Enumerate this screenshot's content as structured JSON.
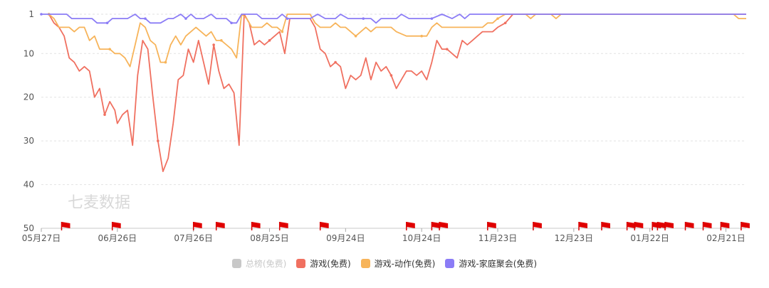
{
  "chart_data": {
    "type": "line",
    "y_reversed": true,
    "ylim": [
      1,
      50
    ],
    "yticks": [
      1,
      10,
      20,
      30,
      40,
      50
    ],
    "xlim": [
      "2023-05-27",
      "2024-02-29"
    ],
    "xticks": [
      {
        "label": "05月27日",
        "date": "2023-05-27"
      },
      {
        "label": "06月26日",
        "date": "2023-06-26"
      },
      {
        "label": "07月26日",
        "date": "2023-07-26"
      },
      {
        "label": "08月25日",
        "date": "2023-08-25"
      },
      {
        "label": "09月24日",
        "date": "2023-09-24"
      },
      {
        "label": "10月24日",
        "date": "2023-10-24"
      },
      {
        "label": "11月23日",
        "date": "2023-11-23"
      },
      {
        "label": "12月23日",
        "date": "2023-12-23"
      },
      {
        "label": "01月22日",
        "date": "2024-01-22"
      },
      {
        "label": "02月21日",
        "date": "2024-02-21"
      }
    ],
    "grid": "horizontal-dashed",
    "legend_position": "bottom-center",
    "watermark": "七麦数据",
    "series": [
      {
        "name": "总榜(免费)",
        "color": "#c8c8c8",
        "visible": false,
        "points": []
      },
      {
        "name": "游戏(免费)",
        "color": "#f07060",
        "visible": true,
        "points": [
          [
            "2023-05-30",
            1
          ],
          [
            "2023-06-01",
            3
          ],
          [
            "2023-06-03",
            4
          ],
          [
            "2023-06-05",
            6
          ],
          [
            "2023-06-07",
            11
          ],
          [
            "2023-06-09",
            12
          ],
          [
            "2023-06-11",
            14
          ],
          [
            "2023-06-13",
            13
          ],
          [
            "2023-06-15",
            14
          ],
          [
            "2023-06-17",
            20
          ],
          [
            "2023-06-19",
            18
          ],
          [
            "2023-06-21",
            24
          ],
          [
            "2023-06-23",
            21
          ],
          [
            "2023-06-25",
            23
          ],
          [
            "2023-06-26",
            26
          ],
          [
            "2023-06-28",
            24
          ],
          [
            "2023-06-30",
            23
          ],
          [
            "2023-07-02",
            31
          ],
          [
            "2023-07-04",
            15
          ],
          [
            "2023-07-06",
            7
          ],
          [
            "2023-07-08",
            9
          ],
          [
            "2023-07-10",
            20
          ],
          [
            "2023-07-12",
            30
          ],
          [
            "2023-07-14",
            37
          ],
          [
            "2023-07-16",
            34
          ],
          [
            "2023-07-18",
            26
          ],
          [
            "2023-07-20",
            16
          ],
          [
            "2023-07-22",
            15
          ],
          [
            "2023-07-24",
            9
          ],
          [
            "2023-07-26",
            12
          ],
          [
            "2023-07-28",
            7
          ],
          [
            "2023-07-30",
            12
          ],
          [
            "2023-08-01",
            17
          ],
          [
            "2023-08-03",
            8
          ],
          [
            "2023-08-05",
            14
          ],
          [
            "2023-08-07",
            18
          ],
          [
            "2023-08-09",
            17
          ],
          [
            "2023-08-11",
            19
          ],
          [
            "2023-08-13",
            31
          ],
          [
            "2023-08-15",
            1
          ],
          [
            "2023-08-17",
            3
          ],
          [
            "2023-08-19",
            8
          ],
          [
            "2023-08-21",
            7
          ],
          [
            "2023-08-23",
            8
          ],
          [
            "2023-08-25",
            7
          ],
          [
            "2023-08-27",
            6
          ],
          [
            "2023-08-29",
            5
          ],
          [
            "2023-08-31",
            10
          ],
          [
            "2023-09-02",
            2
          ],
          [
            "2023-09-06",
            2
          ],
          [
            "2023-09-10",
            2
          ],
          [
            "2023-09-12",
            4
          ],
          [
            "2023-09-14",
            9
          ],
          [
            "2023-09-16",
            10
          ],
          [
            "2023-09-18",
            13
          ],
          [
            "2023-09-20",
            12
          ],
          [
            "2023-09-22",
            13
          ],
          [
            "2023-09-24",
            18
          ],
          [
            "2023-09-26",
            15
          ],
          [
            "2023-09-28",
            16
          ],
          [
            "2023-09-30",
            15
          ],
          [
            "2023-10-02",
            11
          ],
          [
            "2023-10-04",
            16
          ],
          [
            "2023-10-06",
            12
          ],
          [
            "2023-10-08",
            14
          ],
          [
            "2023-10-10",
            13
          ],
          [
            "2023-10-12",
            15
          ],
          [
            "2023-10-14",
            18
          ],
          [
            "2023-10-16",
            16
          ],
          [
            "2023-10-18",
            14
          ],
          [
            "2023-10-20",
            14
          ],
          [
            "2023-10-22",
            15
          ],
          [
            "2023-10-24",
            14
          ],
          [
            "2023-10-26",
            16
          ],
          [
            "2023-10-28",
            12
          ],
          [
            "2023-10-30",
            7
          ],
          [
            "2023-11-01",
            9
          ],
          [
            "2023-11-03",
            9
          ],
          [
            "2023-11-05",
            10
          ],
          [
            "2023-11-07",
            11
          ],
          [
            "2023-11-09",
            7
          ],
          [
            "2023-11-11",
            8
          ],
          [
            "2023-11-13",
            7
          ],
          [
            "2023-11-15",
            6
          ],
          [
            "2023-11-17",
            5
          ],
          [
            "2023-11-19",
            5
          ],
          [
            "2023-11-21",
            5
          ],
          [
            "2023-11-23",
            4
          ],
          [
            "2023-11-26",
            3
          ],
          [
            "2023-11-29",
            1
          ],
          [
            "2023-12-05",
            1
          ],
          [
            "2023-12-20",
            1
          ],
          [
            "2024-01-10",
            1
          ],
          [
            "2024-02-01",
            1
          ],
          [
            "2024-02-29",
            1
          ]
        ]
      },
      {
        "name": "游戏-动作(免费)",
        "color": "#f7b45a",
        "visible": true,
        "points": [
          [
            "2023-05-30",
            1
          ],
          [
            "2023-06-01",
            2
          ],
          [
            "2023-06-03",
            4
          ],
          [
            "2023-06-07",
            4
          ],
          [
            "2023-06-09",
            5
          ],
          [
            "2023-06-11",
            4
          ],
          [
            "2023-06-13",
            4
          ],
          [
            "2023-06-15",
            7
          ],
          [
            "2023-06-17",
            6
          ],
          [
            "2023-06-19",
            9
          ],
          [
            "2023-06-21",
            9
          ],
          [
            "2023-06-23",
            9
          ],
          [
            "2023-06-25",
            10
          ],
          [
            "2023-06-27",
            10
          ],
          [
            "2023-06-29",
            11
          ],
          [
            "2023-07-01",
            13
          ],
          [
            "2023-07-03",
            8
          ],
          [
            "2023-07-05",
            3
          ],
          [
            "2023-07-07",
            4
          ],
          [
            "2023-07-09",
            7
          ],
          [
            "2023-07-11",
            8
          ],
          [
            "2023-07-13",
            12
          ],
          [
            "2023-07-15",
            12
          ],
          [
            "2023-07-17",
            8
          ],
          [
            "2023-07-19",
            6
          ],
          [
            "2023-07-21",
            8
          ],
          [
            "2023-07-23",
            6
          ],
          [
            "2023-07-25",
            5
          ],
          [
            "2023-07-27",
            4
          ],
          [
            "2023-07-29",
            5
          ],
          [
            "2023-07-31",
            6
          ],
          [
            "2023-08-02",
            5
          ],
          [
            "2023-08-04",
            7
          ],
          [
            "2023-08-06",
            7
          ],
          [
            "2023-08-08",
            8
          ],
          [
            "2023-08-10",
            9
          ],
          [
            "2023-08-12",
            11
          ],
          [
            "2023-08-14",
            1
          ],
          [
            "2023-08-16",
            2
          ],
          [
            "2023-08-18",
            4
          ],
          [
            "2023-08-22",
            4
          ],
          [
            "2023-08-24",
            3
          ],
          [
            "2023-08-26",
            4
          ],
          [
            "2023-08-28",
            4
          ],
          [
            "2023-08-30",
            5
          ],
          [
            "2023-09-01",
            1
          ],
          [
            "2023-09-10",
            1
          ],
          [
            "2023-09-12",
            3
          ],
          [
            "2023-09-14",
            4
          ],
          [
            "2023-09-16",
            4
          ],
          [
            "2023-09-18",
            4
          ],
          [
            "2023-09-20",
            3
          ],
          [
            "2023-09-22",
            4
          ],
          [
            "2023-09-24",
            4
          ],
          [
            "2023-09-26",
            5
          ],
          [
            "2023-09-28",
            6
          ],
          [
            "2023-09-30",
            5
          ],
          [
            "2023-10-02",
            4
          ],
          [
            "2023-10-04",
            5
          ],
          [
            "2023-10-06",
            4
          ],
          [
            "2023-10-08",
            4
          ],
          [
            "2023-10-10",
            4
          ],
          [
            "2023-10-12",
            4
          ],
          [
            "2023-10-14",
            5
          ],
          [
            "2023-10-18",
            6
          ],
          [
            "2023-10-22",
            6
          ],
          [
            "2023-10-24",
            6
          ],
          [
            "2023-10-26",
            6
          ],
          [
            "2023-10-28",
            4
          ],
          [
            "2023-10-30",
            3
          ],
          [
            "2023-11-01",
            4
          ],
          [
            "2023-11-05",
            4
          ],
          [
            "2023-11-09",
            4
          ],
          [
            "2023-11-13",
            4
          ],
          [
            "2023-11-17",
            4
          ],
          [
            "2023-11-19",
            3
          ],
          [
            "2023-11-21",
            3
          ],
          [
            "2023-11-23",
            2
          ],
          [
            "2023-11-26",
            1
          ],
          [
            "2023-12-04",
            1
          ],
          [
            "2023-12-06",
            2
          ],
          [
            "2023-12-08",
            1
          ],
          [
            "2023-12-14",
            1
          ],
          [
            "2023-12-16",
            2
          ],
          [
            "2023-12-18",
            1
          ],
          [
            "2024-02-24",
            1
          ],
          [
            "2024-02-26",
            2
          ],
          [
            "2024-02-29",
            2
          ]
        ]
      },
      {
        "name": "游戏-家庭聚会(免费)",
        "color": "#8b7cf6",
        "visible": true,
        "points": [
          [
            "2023-05-27",
            1
          ],
          [
            "2023-06-06",
            1
          ],
          [
            "2023-06-08",
            2
          ],
          [
            "2023-06-12",
            2
          ],
          [
            "2023-06-16",
            2
          ],
          [
            "2023-06-18",
            3
          ],
          [
            "2023-06-20",
            3
          ],
          [
            "2023-06-22",
            3
          ],
          [
            "2023-06-24",
            2
          ],
          [
            "2023-06-26",
            2
          ],
          [
            "2023-06-28",
            2
          ],
          [
            "2023-06-30",
            2
          ],
          [
            "2023-07-03",
            1
          ],
          [
            "2023-07-05",
            2
          ],
          [
            "2023-07-07",
            2
          ],
          [
            "2023-07-09",
            3
          ],
          [
            "2023-07-11",
            3
          ],
          [
            "2023-07-13",
            3
          ],
          [
            "2023-07-16",
            2
          ],
          [
            "2023-07-18",
            2
          ],
          [
            "2023-07-21",
            1
          ],
          [
            "2023-07-23",
            2
          ],
          [
            "2023-07-25",
            1
          ],
          [
            "2023-07-27",
            2
          ],
          [
            "2023-07-30",
            2
          ],
          [
            "2023-08-02",
            1
          ],
          [
            "2023-08-04",
            2
          ],
          [
            "2023-08-08",
            2
          ],
          [
            "2023-08-10",
            3
          ],
          [
            "2023-08-12",
            3
          ],
          [
            "2023-08-14",
            1
          ],
          [
            "2023-08-20",
            1
          ],
          [
            "2023-08-22",
            2
          ],
          [
            "2023-08-28",
            2
          ],
          [
            "2023-08-30",
            1
          ],
          [
            "2023-09-01",
            2
          ],
          [
            "2023-09-10",
            2
          ],
          [
            "2023-09-13",
            1
          ],
          [
            "2023-09-16",
            2
          ],
          [
            "2023-09-20",
            2
          ],
          [
            "2023-09-22",
            1
          ],
          [
            "2023-09-25",
            2
          ],
          [
            "2023-10-01",
            2
          ],
          [
            "2023-10-04",
            2
          ],
          [
            "2023-10-06",
            3
          ],
          [
            "2023-10-08",
            2
          ],
          [
            "2023-10-14",
            2
          ],
          [
            "2023-10-16",
            1
          ],
          [
            "2023-10-19",
            2
          ],
          [
            "2023-10-28",
            2
          ],
          [
            "2023-11-01",
            1
          ],
          [
            "2023-11-05",
            2
          ],
          [
            "2023-11-08",
            1
          ],
          [
            "2023-11-10",
            2
          ],
          [
            "2023-11-12",
            1
          ],
          [
            "2024-02-29",
            1
          ]
        ]
      }
    ],
    "flag_dates": [
      "2023-06-04",
      "2023-06-24",
      "2023-07-26",
      "2023-08-04",
      "2023-08-18",
      "2023-08-29",
      "2023-09-14",
      "2023-10-18",
      "2023-10-28",
      "2023-10-31",
      "2023-11-19",
      "2023-12-07",
      "2023-12-25",
      "2024-01-03",
      "2024-01-13",
      "2024-01-16",
      "2024-01-23",
      "2024-01-25",
      "2024-01-28",
      "2024-02-05",
      "2024-02-12",
      "2024-02-19",
      "2024-02-27"
    ]
  }
}
